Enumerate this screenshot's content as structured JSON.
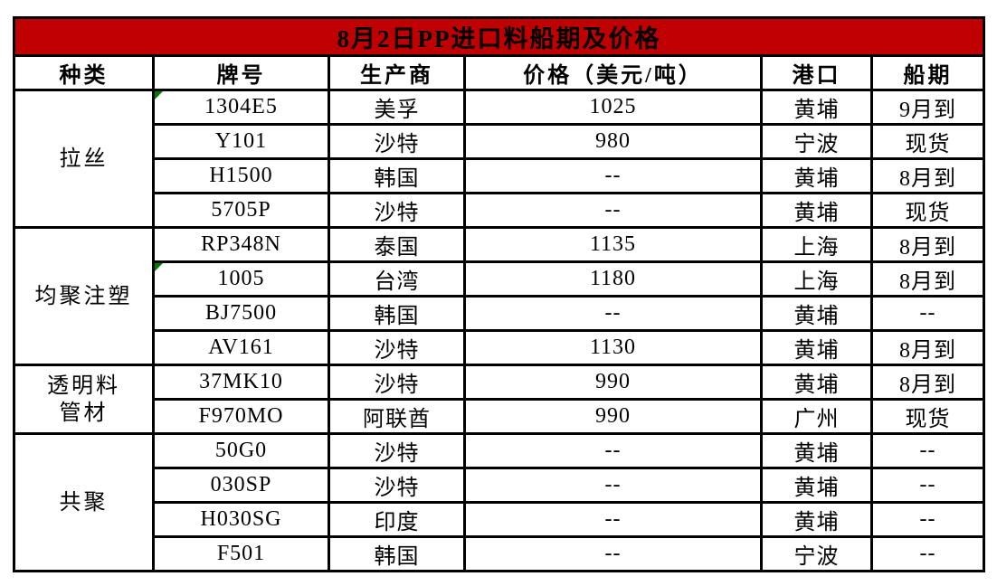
{
  "title": "8月2日PP进口料船期及价格",
  "colors": {
    "title_bg": "#C00000",
    "title_text": "#FFFFFF",
    "border": "#000000",
    "error_marker_green": "#007B00"
  },
  "columns": [
    "种类",
    "牌号",
    "生产商",
    "价格（美元/吨）",
    "港口",
    "船期"
  ],
  "groups": [
    {
      "category": "拉丝",
      "rows": [
        {
          "grade": "1304E5",
          "producer": "美孚",
          "price": "1025",
          "port": "黄埔",
          "shipment": "9月到",
          "error_marker": true
        },
        {
          "grade": "Y101",
          "producer": "沙特",
          "price": "980",
          "port": "宁波",
          "shipment": "现货"
        },
        {
          "grade": "H1500",
          "producer": "韩国",
          "price": "--",
          "port": "黄埔",
          "shipment": "8月到"
        },
        {
          "grade": "5705P",
          "producer": "沙特",
          "price": "--",
          "port": "黄埔",
          "shipment": "现货"
        }
      ]
    },
    {
      "category": "均聚注塑",
      "rows": [
        {
          "grade": "RP348N",
          "producer": "泰国",
          "price": "1135",
          "port": "上海",
          "shipment": "8月到"
        },
        {
          "grade": "1005",
          "producer": "台湾",
          "price": "1180",
          "port": "上海",
          "shipment": "8月到",
          "error_marker": true
        },
        {
          "grade": "BJ7500",
          "producer": "韩国",
          "price": "--",
          "port": "黄埔",
          "shipment": "--"
        },
        {
          "grade": "AV161",
          "producer": "沙特",
          "price": "1130",
          "port": "黄埔",
          "shipment": "8月到"
        }
      ]
    },
    {
      "category": "透明料管材",
      "category_lines": [
        "透明料",
        "管材"
      ],
      "rows": [
        {
          "grade": "37MK10",
          "producer": "沙特",
          "price": "990",
          "port": "黄埔",
          "shipment": "8月到"
        },
        {
          "grade": "F970MO",
          "producer": "阿联酋",
          "price": "990",
          "port": "广州",
          "shipment": "现货"
        }
      ]
    },
    {
      "category": "共聚",
      "rows": [
        {
          "grade": "50G0",
          "producer": "沙特",
          "price": "--",
          "port": "黄埔",
          "shipment": "--"
        },
        {
          "grade": "030SP",
          "producer": "沙特",
          "price": "--",
          "port": "黄埔",
          "shipment": "--"
        },
        {
          "grade": "H030SG",
          "producer": "印度",
          "price": "--",
          "port": "黄埔",
          "shipment": "--"
        },
        {
          "grade": "F501",
          "producer": "韩国",
          "price": "--",
          "port": "宁波",
          "shipment": "--"
        }
      ]
    }
  ]
}
